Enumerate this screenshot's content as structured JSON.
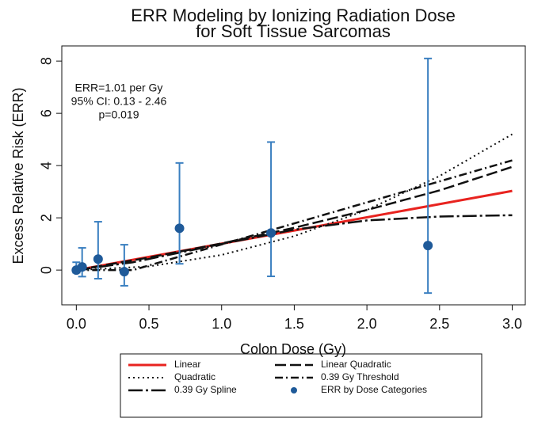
{
  "chart_data": {
    "type": "line",
    "title": [
      "ERR Modeling by Ionizing Radiation Dose",
      "for Soft Tissue Sarcomas"
    ],
    "x_label": "Colon Dose (Gy)",
    "y_label": "Excess Relative Risk (ERR)",
    "annotation": [
      "ERR=1.01 per Gy",
      "95% CI: 0.13 - 2.46",
      "p=0.019"
    ],
    "xlim": [
      -0.1,
      3.09
    ],
    "ylim": [
      -1.33,
      8.58
    ],
    "xticks": [
      {
        "value": 0,
        "label": "0.0"
      },
      0.5,
      {
        "value": 1,
        "label": "1.0"
      },
      1.5,
      {
        "value": 2,
        "label": "2.0"
      },
      2.5,
      {
        "value": 3,
        "label": "3.0"
      }
    ],
    "yticks": [
      0,
      2,
      4,
      6,
      8
    ],
    "series": [
      {
        "name": "Linear",
        "color": "#e8231f",
        "dash": "solid",
        "x": [
          0,
          3
        ],
        "values": [
          0,
          3.03
        ]
      },
      {
        "name": "Linear Quadratic",
        "color": "#111111",
        "dash": "dashed",
        "x": [
          0,
          0.5,
          1,
          1.5,
          2,
          2.5,
          3
        ],
        "values": [
          0,
          0.48,
          1.02,
          1.62,
          2.3,
          3.05,
          3.95
        ]
      },
      {
        "name": "Quadratic",
        "color": "#111111",
        "dash": "dotted",
        "x": [
          0,
          0.5,
          1,
          1.5,
          2,
          2.5,
          3
        ],
        "values": [
          0,
          0.14,
          0.58,
          1.3,
          2.3,
          3.6,
          5.2
        ]
      },
      {
        "name": "0.39 Gy Threshold",
        "color": "#111111",
        "dash": "dash-dot",
        "x": [
          0,
          0.39,
          3
        ],
        "values": [
          0,
          0,
          4.2
        ]
      },
      {
        "name": "0.39 Gy Spline",
        "color": "#111111",
        "dash": "long-dash-dot",
        "x": [
          0,
          0.39,
          1,
          1.5,
          2,
          2.5,
          3
        ],
        "values": [
          0,
          0.3,
          1.0,
          1.55,
          1.9,
          2.05,
          2.1
        ]
      }
    ],
    "error_series": {
      "name": "ERR by Dose Categories",
      "color": "#1f5a99",
      "bar_color": "#3a7fc0",
      "x": [
        0,
        0.04,
        0.15,
        0.33,
        0.71,
        1.34,
        2.42
      ],
      "values": [
        0,
        0.12,
        0.42,
        -0.06,
        1.6,
        1.42,
        0.94
      ],
      "lower": [
        -0.1,
        -0.25,
        -0.33,
        -0.6,
        0.24,
        -0.24,
        -0.88
      ],
      "upper": [
        0.3,
        0.85,
        1.85,
        0.97,
        4.1,
        4.9,
        8.1
      ]
    },
    "legend": "bottom"
  }
}
